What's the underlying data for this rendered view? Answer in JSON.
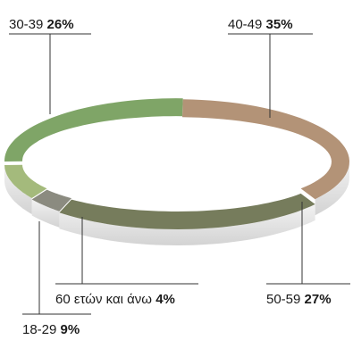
{
  "chart_data": {
    "type": "pie",
    "style": "3d-ring",
    "categories": [
      "40-49",
      "50-59",
      "60 ετών και άνω",
      "18-29",
      "30-39"
    ],
    "values": [
      35,
      27,
      4,
      9,
      26
    ],
    "value_labels": [
      "35%",
      "27%",
      "4%",
      "9%",
      "26%"
    ],
    "colors": [
      "#b39377",
      "#767c5c",
      "#8b8b80",
      "#a4ba7c",
      "#7fa567"
    ],
    "side_colors": [
      "#e2e2e2",
      "#e0e0e0",
      "#dcdcdc",
      "#dedede",
      "#dddddd"
    ],
    "legend": "none"
  }
}
